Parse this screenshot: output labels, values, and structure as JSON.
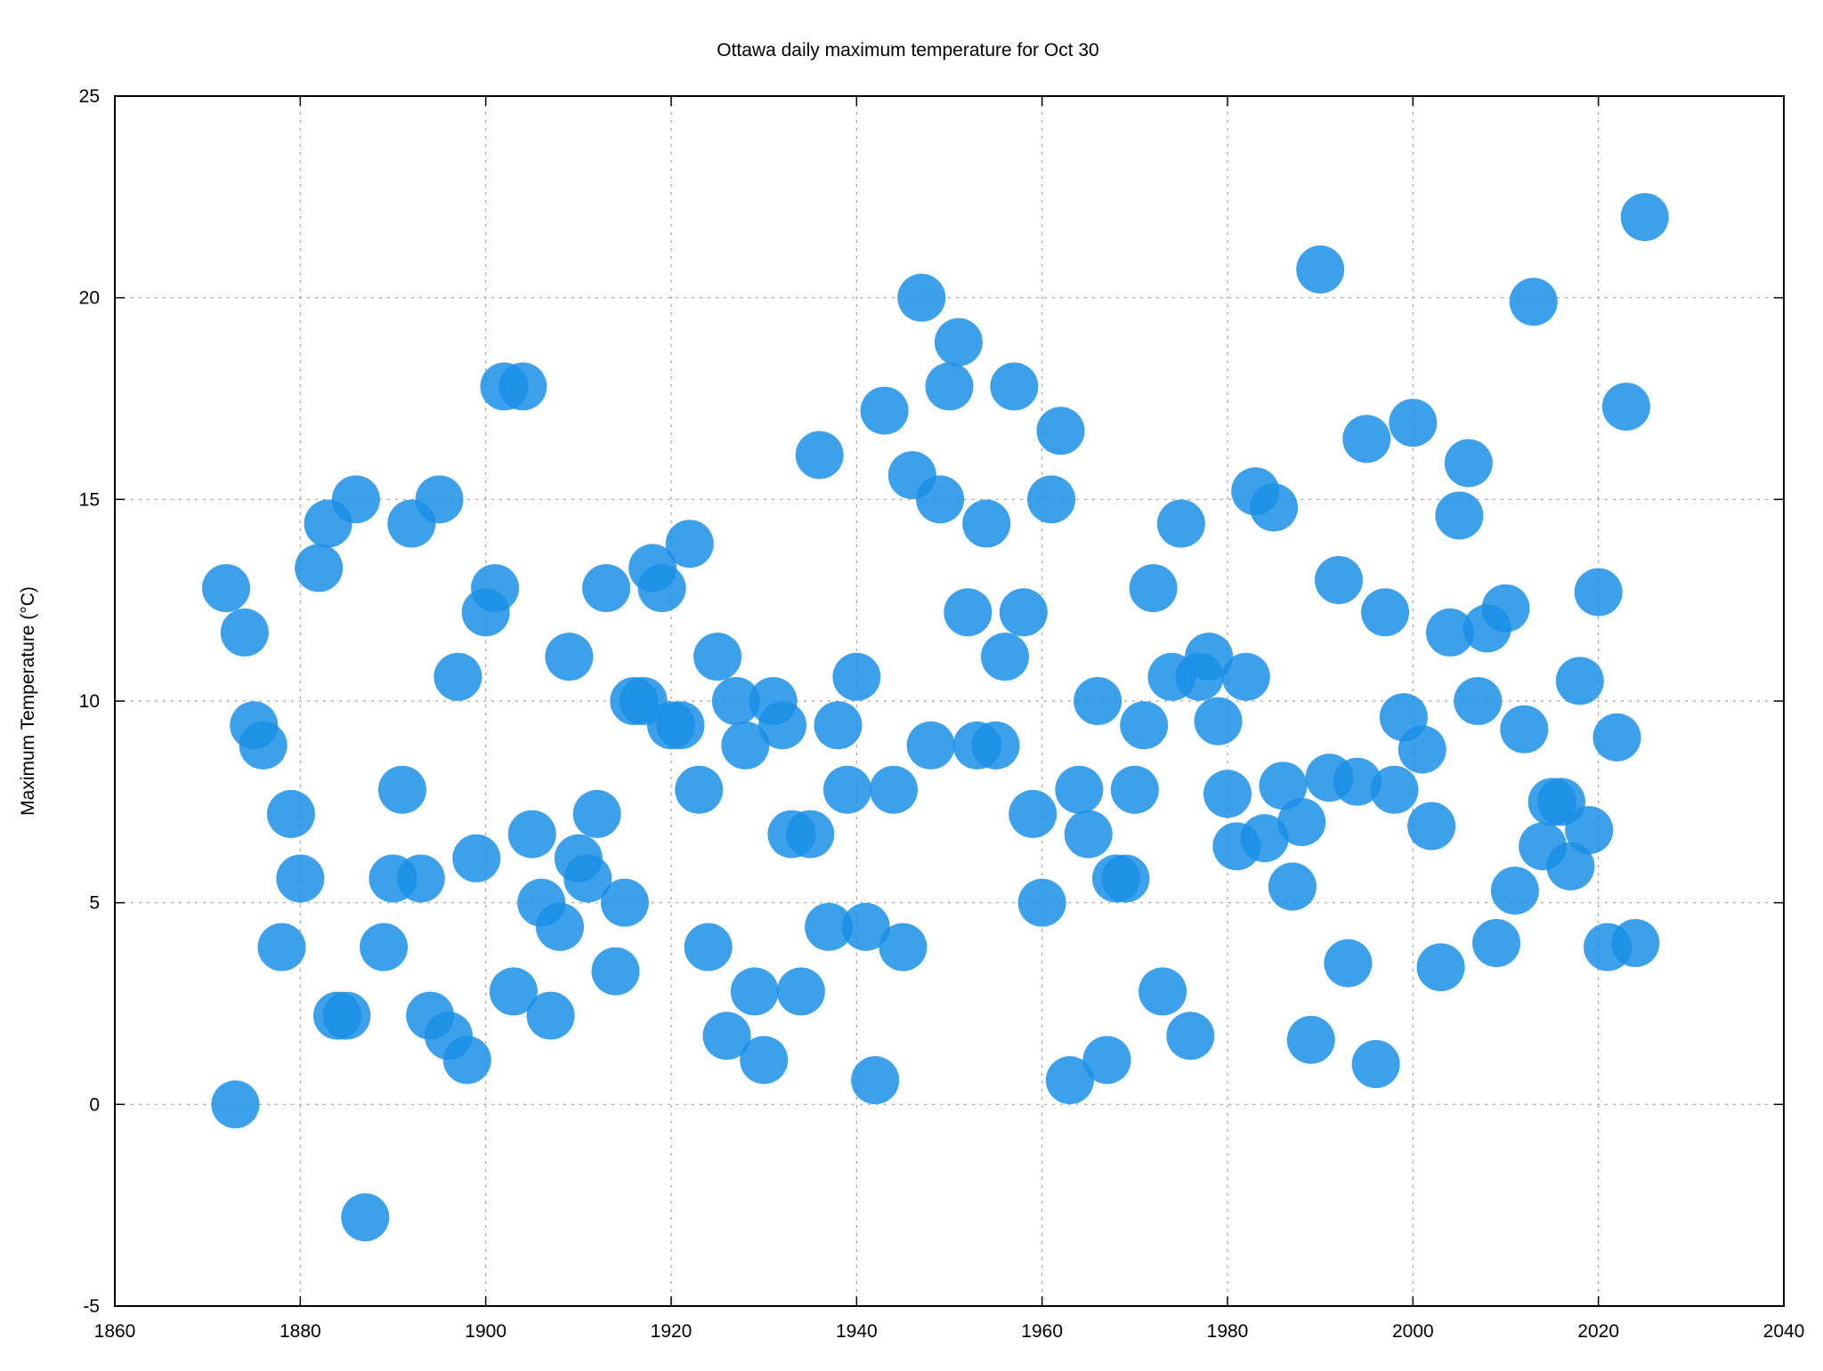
{
  "chart_data": {
    "type": "scatter",
    "title": "Ottawa daily maximum temperature for Oct 30",
    "xlabel": "",
    "ylabel": "Maximum Temperature (°C)",
    "xlim": [
      1860,
      2040
    ],
    "ylim": [
      -5,
      25
    ],
    "xticks": [
      1860,
      1880,
      1900,
      1920,
      1940,
      1960,
      1980,
      2000,
      2020,
      2040
    ],
    "yticks": [
      -5,
      0,
      5,
      10,
      15,
      20,
      25
    ],
    "grid": true,
    "legend": "none",
    "marker_color": "#1a8fe8",
    "marker_opacity": 0.85,
    "series": [
      {
        "points": [
          [
            1872,
            12.8
          ],
          [
            1873,
            0.0
          ],
          [
            1874,
            11.7
          ],
          [
            1875,
            9.4
          ],
          [
            1876,
            8.9
          ],
          [
            1878,
            3.9
          ],
          [
            1879,
            7.2
          ],
          [
            1880,
            5.6
          ],
          [
            1882,
            13.3
          ],
          [
            1883,
            14.4
          ],
          [
            1884,
            2.2
          ],
          [
            1885,
            2.2
          ],
          [
            1886,
            15.0
          ],
          [
            1887,
            -2.8
          ],
          [
            1889,
            3.9
          ],
          [
            1890,
            5.6
          ],
          [
            1891,
            7.8
          ],
          [
            1892,
            14.4
          ],
          [
            1893,
            5.6
          ],
          [
            1894,
            2.2
          ],
          [
            1895,
            15.0
          ],
          [
            1896,
            1.7
          ],
          [
            1897,
            10.6
          ],
          [
            1898,
            1.1
          ],
          [
            1899,
            6.1
          ],
          [
            1900,
            12.2
          ],
          [
            1901,
            12.8
          ],
          [
            1902,
            17.8
          ],
          [
            1903,
            2.8
          ],
          [
            1904,
            17.8
          ],
          [
            1905,
            6.7
          ],
          [
            1906,
            5.0
          ],
          [
            1907,
            2.2
          ],
          [
            1908,
            4.4
          ],
          [
            1909,
            11.1
          ],
          [
            1910,
            6.1
          ],
          [
            1911,
            5.6
          ],
          [
            1912,
            7.2
          ],
          [
            1913,
            12.8
          ],
          [
            1914,
            3.3
          ],
          [
            1915,
            5.0
          ],
          [
            1916,
            10.0
          ],
          [
            1917,
            10.0
          ],
          [
            1918,
            13.3
          ],
          [
            1919,
            12.8
          ],
          [
            1920,
            9.4
          ],
          [
            1921,
            9.4
          ],
          [
            1922,
            13.9
          ],
          [
            1923,
            7.8
          ],
          [
            1924,
            3.9
          ],
          [
            1925,
            11.1
          ],
          [
            1926,
            1.7
          ],
          [
            1927,
            10.0
          ],
          [
            1928,
            8.9
          ],
          [
            1929,
            2.8
          ],
          [
            1930,
            1.1
          ],
          [
            1931,
            10.0
          ],
          [
            1932,
            9.4
          ],
          [
            1933,
            6.7
          ],
          [
            1934,
            2.8
          ],
          [
            1935,
            6.7
          ],
          [
            1936,
            16.1
          ],
          [
            1937,
            4.4
          ],
          [
            1938,
            9.4
          ],
          [
            1939,
            7.8
          ],
          [
            1940,
            10.6
          ],
          [
            1941,
            4.4
          ],
          [
            1942,
            0.6
          ],
          [
            1943,
            17.2
          ],
          [
            1944,
            7.8
          ],
          [
            1945,
            3.9
          ],
          [
            1946,
            15.6
          ],
          [
            1947,
            20.0
          ],
          [
            1948,
            8.9
          ],
          [
            1949,
            15.0
          ],
          [
            1950,
            17.8
          ],
          [
            1951,
            18.9
          ],
          [
            1952,
            12.2
          ],
          [
            1953,
            8.9
          ],
          [
            1954,
            14.4
          ],
          [
            1955,
            8.9
          ],
          [
            1956,
            11.1
          ],
          [
            1957,
            17.8
          ],
          [
            1958,
            12.2
          ],
          [
            1959,
            7.2
          ],
          [
            1960,
            5.0
          ],
          [
            1961,
            15.0
          ],
          [
            1962,
            16.7
          ],
          [
            1963,
            0.6
          ],
          [
            1964,
            7.8
          ],
          [
            1965,
            6.7
          ],
          [
            1966,
            10.0
          ],
          [
            1967,
            1.1
          ],
          [
            1968,
            5.6
          ],
          [
            1969,
            5.6
          ],
          [
            1970,
            7.8
          ],
          [
            1971,
            9.4
          ],
          [
            1972,
            12.8
          ],
          [
            1973,
            2.8
          ],
          [
            1974,
            10.6
          ],
          [
            1975,
            14.4
          ],
          [
            1976,
            1.7
          ],
          [
            1977,
            10.6
          ],
          [
            1978,
            11.1
          ],
          [
            1979,
            9.5
          ],
          [
            1980,
            7.7
          ],
          [
            1981,
            6.4
          ],
          [
            1982,
            10.6
          ],
          [
            1983,
            15.2
          ],
          [
            1984,
            6.6
          ],
          [
            1985,
            14.8
          ],
          [
            1986,
            7.9
          ],
          [
            1987,
            5.4
          ],
          [
            1988,
            7.0
          ],
          [
            1989,
            1.6
          ],
          [
            1990,
            20.7
          ],
          [
            1991,
            8.1
          ],
          [
            1992,
            13.0
          ],
          [
            1993,
            3.5
          ],
          [
            1994,
            8.0
          ],
          [
            1995,
            16.5
          ],
          [
            1996,
            1.0
          ],
          [
            1997,
            12.2
          ],
          [
            1998,
            7.8
          ],
          [
            1999,
            9.6
          ],
          [
            2000,
            16.9
          ],
          [
            2001,
            8.8
          ],
          [
            2002,
            6.9
          ],
          [
            2003,
            3.4
          ],
          [
            2004,
            11.7
          ],
          [
            2005,
            14.6
          ],
          [
            2006,
            15.9
          ],
          [
            2007,
            10.0
          ],
          [
            2008,
            11.8
          ],
          [
            2009,
            4.0
          ],
          [
            2010,
            12.3
          ],
          [
            2011,
            5.3
          ],
          [
            2012,
            9.3
          ],
          [
            2013,
            19.9
          ],
          [
            2014,
            6.4
          ],
          [
            2015,
            7.5
          ],
          [
            2016,
            7.5
          ],
          [
            2017,
            5.9
          ],
          [
            2018,
            10.5
          ],
          [
            2019,
            6.8
          ],
          [
            2020,
            12.7
          ],
          [
            2021,
            3.9
          ],
          [
            2022,
            9.1
          ],
          [
            2023,
            17.3
          ],
          [
            2024,
            4.0
          ],
          [
            2025,
            22.0
          ]
        ]
      }
    ]
  }
}
